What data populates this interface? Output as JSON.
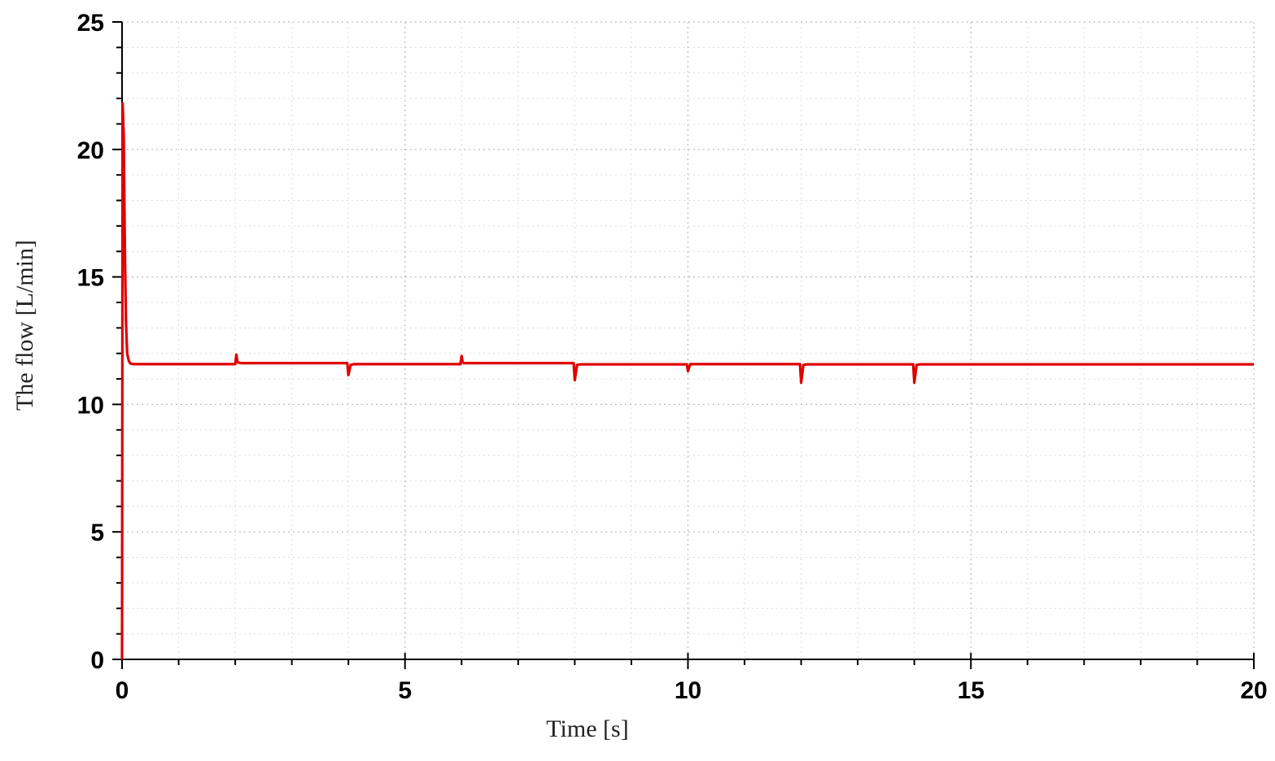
{
  "chart_data": {
    "type": "line",
    "title": "",
    "xlabel": "Time [s]",
    "ylabel": "The flow  [L/min]",
    "xlim": [
      0,
      20
    ],
    "ylim": [
      0,
      25
    ],
    "x_major_ticks": [
      0,
      5,
      10,
      15,
      20
    ],
    "y_major_ticks": [
      0,
      5,
      10,
      15,
      20,
      25
    ],
    "x_minor_step": 1,
    "y_minor_step": 1,
    "grid": true,
    "legend": "none",
    "series": [
      {
        "color": "#e00000",
        "x": [
          0,
          0.01,
          0.03,
          0.05,
          0.07,
          0.09,
          0.12,
          0.15,
          0.2,
          2.0,
          2.02,
          2.04,
          2.1,
          3.98,
          4.0,
          4.04,
          4.1,
          5.98,
          6.0,
          6.02,
          6.04,
          6.1,
          7.98,
          8.0,
          8.04,
          8.1,
          9.98,
          10.0,
          10.04,
          10.1,
          11.98,
          12.0,
          12.04,
          12.1,
          13.98,
          14.0,
          14.04,
          14.1,
          20.0
        ],
        "y": [
          0,
          21.8,
          20.5,
          16.0,
          13.2,
          12.0,
          11.7,
          11.6,
          11.58,
          11.58,
          11.95,
          11.65,
          11.62,
          11.62,
          11.15,
          11.55,
          11.58,
          11.58,
          11.9,
          11.65,
          11.62,
          11.62,
          11.62,
          10.95,
          11.55,
          11.57,
          11.57,
          11.3,
          11.58,
          11.58,
          11.58,
          10.85,
          11.55,
          11.57,
          11.57,
          10.85,
          11.55,
          11.57,
          11.57
        ]
      }
    ]
  }
}
